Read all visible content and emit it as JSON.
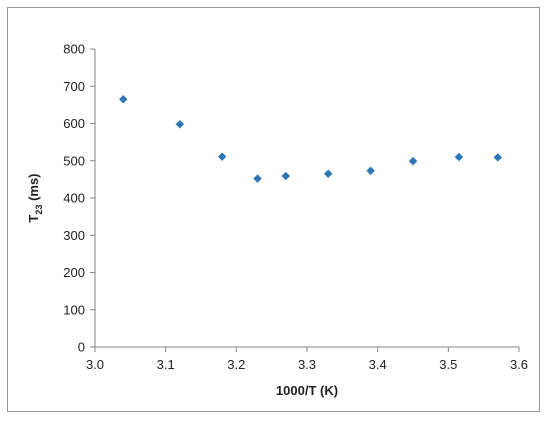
{
  "chart_data": {
    "type": "scatter",
    "xlabel": "1000/T (K)",
    "ylabel": {
      "main": "T",
      "sub": "23",
      "unit": " (ms)"
    },
    "xlim": [
      3.0,
      3.6
    ],
    "ylim": [
      0,
      800
    ],
    "xticks": [
      "3.0",
      "3.1",
      "3.2",
      "3.3",
      "3.4",
      "3.5",
      "3.6"
    ],
    "yticks": [
      "0",
      "100",
      "200",
      "300",
      "400",
      "500",
      "600",
      "700",
      "800"
    ],
    "grid": false,
    "marker": "diamond",
    "color": "#2e75b6",
    "series": [
      {
        "x": [
          3.04,
          3.12,
          3.18,
          3.23,
          3.27,
          3.33,
          3.39,
          3.45,
          3.515,
          3.57
        ],
        "y": [
          665,
          598,
          511,
          452,
          459,
          465,
          473,
          499,
          510,
          509
        ]
      }
    ]
  }
}
